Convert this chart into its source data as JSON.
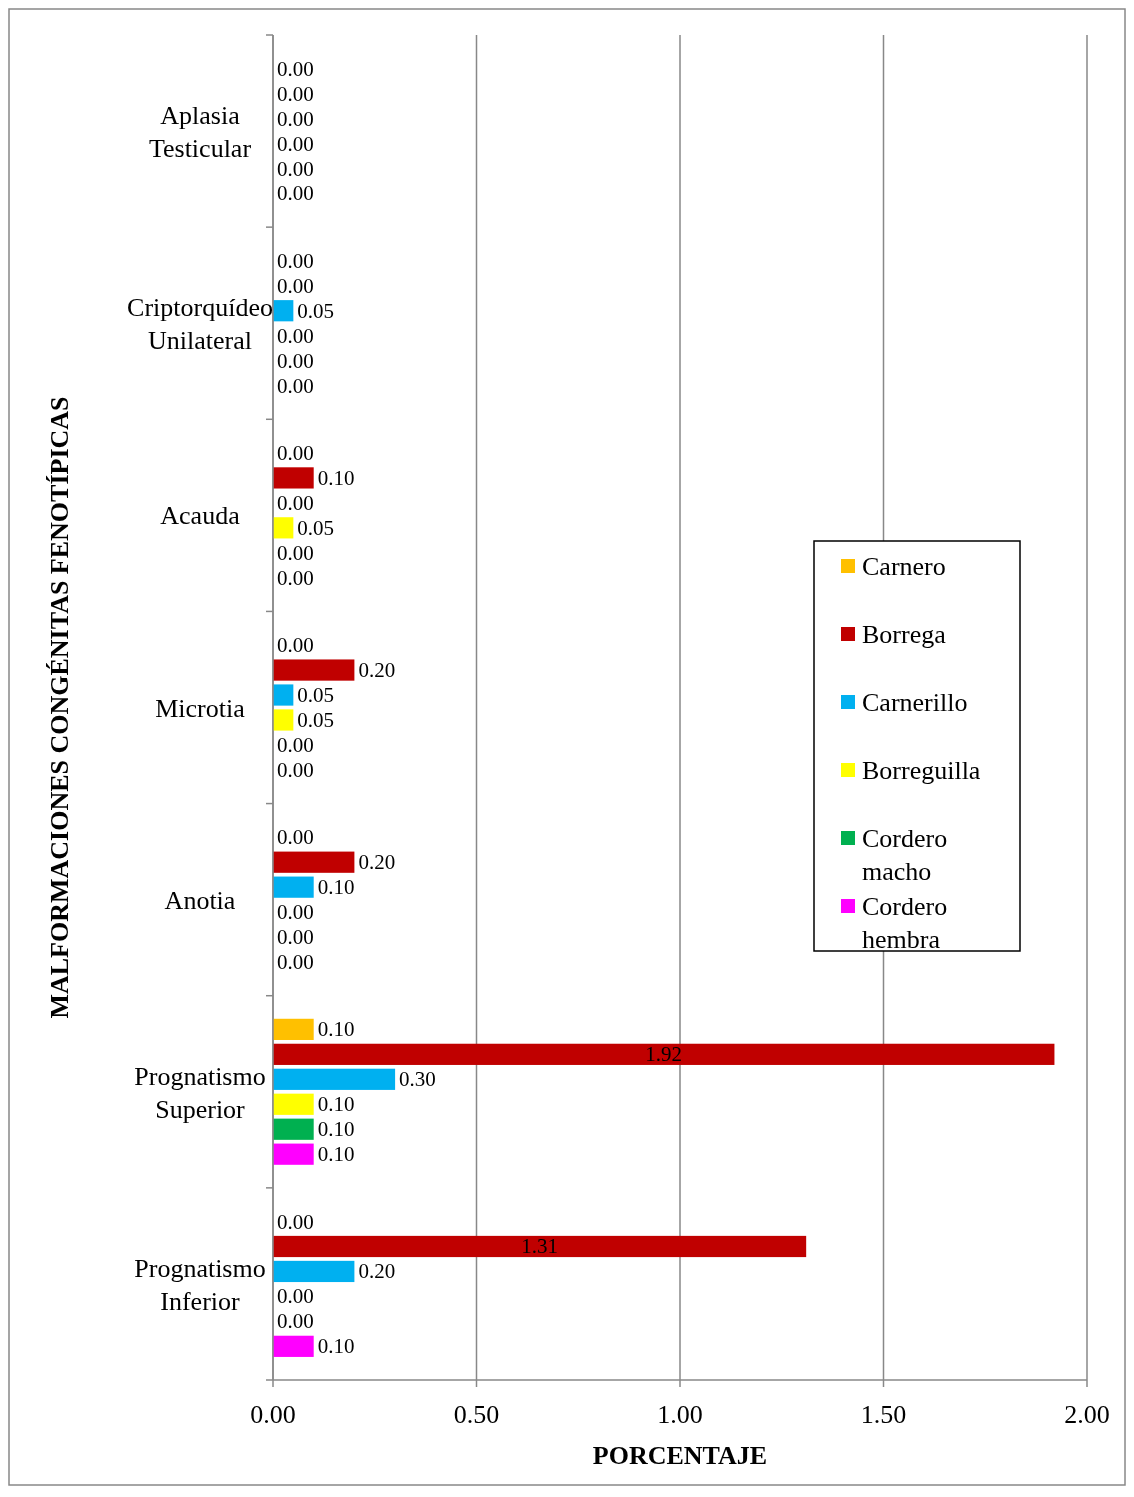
{
  "chart_data": {
    "type": "bar",
    "orientation": "horizontal",
    "xlabel": "PORCENTAJE",
    "ylabel": "MALFORMACIONES CONGÉNITAS FENOTÍPICAS",
    "categories": [
      "Aplasia Testicular",
      "Criptorquídeo Unilateral",
      "Acauda",
      "Microtia",
      "Anotia",
      "Prognatismo Superior",
      "Prognatismo Inferior"
    ],
    "series": [
      {
        "name": "Carnero",
        "color": "#ffc000",
        "values": [
          0,
          0,
          0,
          0,
          0,
          0.1,
          0
        ],
        "value_labels": [
          "0.00",
          "0.00",
          "0.00",
          "0.00",
          "0.00",
          "0.10",
          "0.00"
        ]
      },
      {
        "name": "Borrega",
        "color": "#c00000",
        "values": [
          0,
          0,
          0.1,
          0.2,
          0.2,
          1.92,
          1.31
        ],
        "value_labels": [
          "0.00",
          "0.00",
          "0.10",
          "0.20",
          "0.20",
          "1.92",
          "1.31"
        ]
      },
      {
        "name": "Carnerillo",
        "color": "#00b0f0",
        "values": [
          0,
          0.05,
          0,
          0.05,
          0.1,
          0.3,
          0.2
        ],
        "value_labels": [
          "0.00",
          "0.05",
          "0.00",
          "0.05",
          "0.10",
          "0.30",
          "0.20"
        ]
      },
      {
        "name": "Borreguilla",
        "color": "#ffff00",
        "values": [
          0,
          0,
          0.05,
          0.05,
          0,
          0.1,
          0
        ],
        "value_labels": [
          "0.00",
          "0.00",
          "0.05",
          "0.05",
          "0.00",
          "0.10",
          "0.00"
        ]
      },
      {
        "name": "Cordero macho",
        "color": "#00b050",
        "values": [
          0,
          0,
          0,
          0,
          0,
          0.1,
          0
        ],
        "value_labels": [
          "0.00",
          "0.00",
          "0.00",
          "0.00",
          "0.00",
          "0.10",
          "0.00"
        ]
      },
      {
        "name": "Cordero hembra",
        "color": "#ff00ff",
        "values": [
          0,
          0,
          0,
          0,
          0,
          0.1,
          0.1
        ],
        "value_labels": [
          "0.00",
          "0.00",
          "0.00",
          "0.00",
          "0.00",
          "0.10",
          "0.10"
        ]
      }
    ],
    "xlim": [
      0,
      2
    ],
    "xticks": [
      {
        "value": 0,
        "label": "0.00"
      },
      {
        "value": 0.5,
        "label": "0.50"
      },
      {
        "value": 1,
        "label": "1.00"
      },
      {
        "value": 1.5,
        "label": "1.50"
      },
      {
        "value": 2,
        "label": "2.00"
      }
    ],
    "grid": "x",
    "legend": "right"
  }
}
